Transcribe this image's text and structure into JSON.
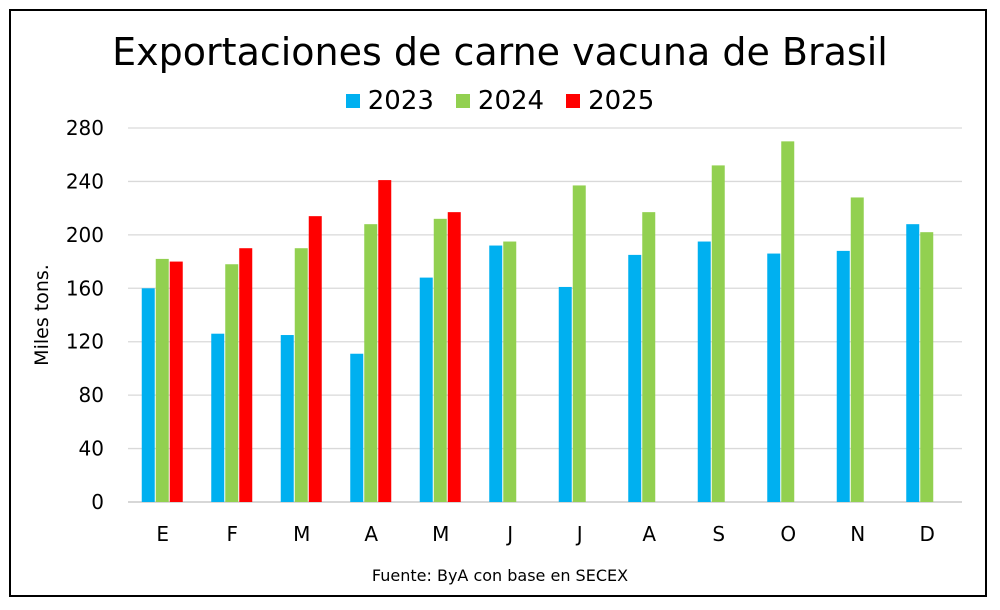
{
  "chart_data": {
    "type": "bar",
    "title": "Exportaciones de carne vacuna de Brasil",
    "ylabel": "Miles tons.",
    "source": "Fuente: ByA con base en SECEX",
    "categories": [
      "E",
      "F",
      "M",
      "A",
      "M",
      "J",
      "J",
      "A",
      "S",
      "O",
      "N",
      "D"
    ],
    "ylim": [
      0,
      280
    ],
    "yticks": [
      0,
      40,
      80,
      120,
      160,
      200,
      240,
      280
    ],
    "grid": true,
    "legend": "top",
    "series": [
      {
        "name": "2023",
        "color": "#00B0F0",
        "values": [
          160,
          126,
          125,
          111,
          168,
          192,
          161,
          185,
          195,
          186,
          188,
          208
        ]
      },
      {
        "name": "2024",
        "color": "#92D050",
        "values": [
          182,
          178,
          190,
          208,
          212,
          195,
          237,
          217,
          252,
          270,
          228,
          202
        ]
      },
      {
        "name": "2025",
        "color": "#FF0000",
        "values": [
          180,
          190,
          214,
          241,
          217,
          null,
          null,
          null,
          null,
          null,
          null,
          null
        ]
      }
    ]
  }
}
